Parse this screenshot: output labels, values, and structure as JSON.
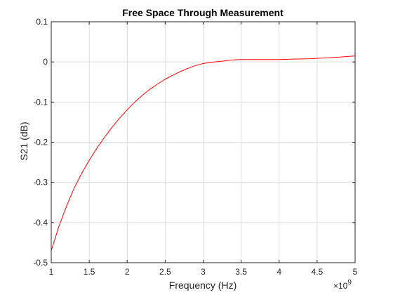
{
  "chart_data": {
    "type": "line",
    "title": "Free Space Through Measurement",
    "xlabel": "Frequency (Hz)",
    "ylabel": "S21 (dB)",
    "x_multiplier": {
      "base": "×10",
      "exponent": "9"
    },
    "xlim": [
      1,
      5
    ],
    "ylim": [
      -0.5,
      0.1
    ],
    "x_ticks": [
      1,
      1.5,
      2,
      2.5,
      3,
      3.5,
      4,
      4.5,
      5
    ],
    "x_tick_labels": [
      "1",
      "1.5",
      "2",
      "2.5",
      "3",
      "3.5",
      "4",
      "4.5",
      "5"
    ],
    "y_ticks": [
      -0.5,
      -0.4,
      -0.3,
      -0.2,
      -0.1,
      0,
      0.1
    ],
    "y_tick_labels": [
      "-0.5",
      "-0.4",
      "-0.3",
      "-0.2",
      "-0.1",
      "0",
      "0.1"
    ],
    "grid": true,
    "series": [
      {
        "color": "#ff0000",
        "x": [
          1.0,
          1.1,
          1.2,
          1.3,
          1.4,
          1.5,
          1.6,
          1.7,
          1.8,
          1.9,
          2.0,
          2.1,
          2.2,
          2.3,
          2.4,
          2.5,
          2.6,
          2.7,
          2.8,
          2.9,
          3.0,
          3.1,
          3.2,
          3.3,
          3.4,
          3.5,
          3.6,
          3.8,
          4.0,
          4.2,
          4.4,
          4.6,
          4.8,
          5.0
        ],
        "y": [
          -0.47,
          -0.41,
          -0.36,
          -0.315,
          -0.278,
          -0.245,
          -0.215,
          -0.188,
          -0.163,
          -0.14,
          -0.119,
          -0.1,
          -0.083,
          -0.068,
          -0.055,
          -0.043,
          -0.033,
          -0.024,
          -0.016,
          -0.009,
          -0.004,
          -0.001,
          0.001,
          0.003,
          0.005,
          0.006,
          0.006,
          0.006,
          0.006,
          0.007,
          0.008,
          0.01,
          0.012,
          0.015
        ]
      }
    ]
  }
}
